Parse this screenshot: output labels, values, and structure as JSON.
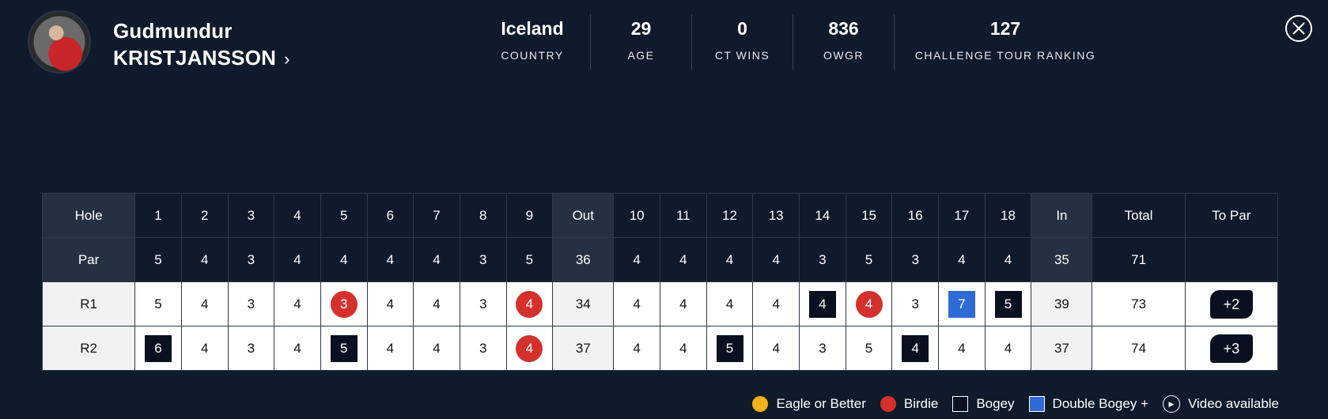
{
  "player": {
    "first_name": "Gudmundur",
    "last_name": "KRISTJANSSON",
    "chevron": "›"
  },
  "stats": [
    {
      "value": "Iceland",
      "label": "COUNTRY"
    },
    {
      "value": "29",
      "label": "AGE"
    },
    {
      "value": "0",
      "label": "CT WINS"
    },
    {
      "value": "836",
      "label": "OWGR"
    },
    {
      "value": "127",
      "label": "CHALLENGE TOUR RANKING"
    }
  ],
  "close_icon": "close-icon",
  "scorecard": {
    "hole_label": "Hole",
    "par_label": "Par",
    "out_label": "Out",
    "in_label": "In",
    "total_label": "Total",
    "topar_label": "To Par",
    "holes": [
      "1",
      "2",
      "3",
      "4",
      "5",
      "6",
      "7",
      "8",
      "9",
      "10",
      "11",
      "12",
      "13",
      "14",
      "15",
      "16",
      "17",
      "18"
    ],
    "par": [
      "5",
      "4",
      "3",
      "4",
      "4",
      "4",
      "4",
      "3",
      "5",
      "4",
      "4",
      "4",
      "4",
      "3",
      "5",
      "3",
      "4",
      "4"
    ],
    "par_out": "36",
    "par_in": "35",
    "par_total": "71",
    "rounds": [
      {
        "label": "R1",
        "scores": [
          "5",
          "4",
          "3",
          "4",
          "3",
          "4",
          "4",
          "3",
          "4",
          "4",
          "4",
          "4",
          "4",
          "4",
          "4",
          "3",
          "7",
          "5"
        ],
        "types": [
          "",
          "",
          "",
          "",
          "birdie",
          "",
          "",
          "",
          "birdie",
          "",
          "",
          "",
          "",
          "bogey",
          "birdie",
          "",
          "dbl",
          "bogey"
        ],
        "out": "34",
        "in": "39",
        "total": "73",
        "to_par": "+2"
      },
      {
        "label": "R2",
        "scores": [
          "6",
          "4",
          "3",
          "4",
          "5",
          "4",
          "4",
          "3",
          "4",
          "4",
          "4",
          "5",
          "4",
          "3",
          "5",
          "4",
          "4",
          "4"
        ],
        "types": [
          "bogey",
          "",
          "",
          "",
          "bogey",
          "",
          "",
          "",
          "birdie",
          "",
          "",
          "bogey",
          "",
          "",
          "",
          "bogey",
          "",
          ""
        ],
        "out": "37",
        "in": "37",
        "total": "74",
        "to_par": "+3"
      }
    ]
  },
  "legend": {
    "eagle": "Eagle or Better",
    "birdie": "Birdie",
    "bogey": "Bogey",
    "double": "Double Bogey +",
    "video": "Video available",
    "colors": {
      "eagle": "#f2b01e",
      "birdie": "#d4312c",
      "bogey": "#0a1020",
      "double": "#2f6bd6"
    }
  }
}
